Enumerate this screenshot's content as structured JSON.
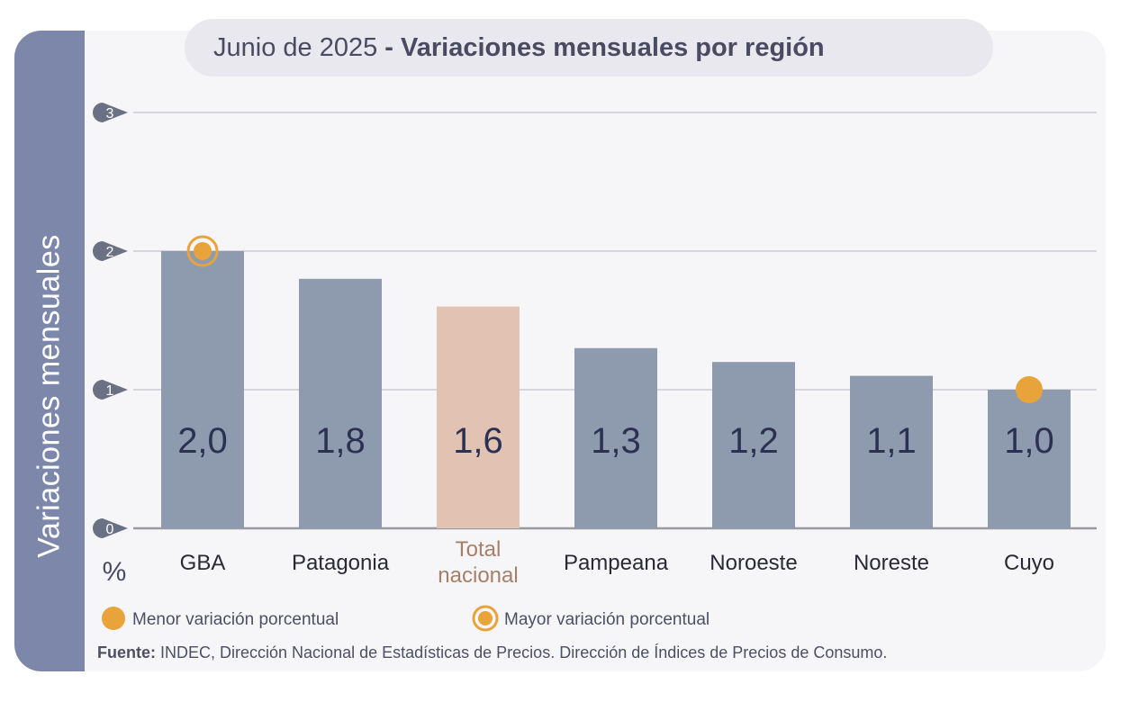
{
  "side_label": "Variaciones  mensuales",
  "title": {
    "date": "Junio de 2025",
    "separator": "-",
    "text": "Variaciones mensuales por región"
  },
  "unit_label": "%",
  "legend": {
    "min": {
      "label": "Menor variación porcentual",
      "color": "#e8a33a"
    },
    "max": {
      "label": "Mayor variación porcentual",
      "color": "#e8a33a"
    }
  },
  "footer": {
    "label": "Fuente:",
    "text": "INDEC, Dirección Nacional de Estadísticas de Precios. Dirección de Índices de Precios de Consumo."
  },
  "colors": {
    "bar": "#8e9baf",
    "highlight_bar": "#e2c3b3",
    "tick_badge": "#6b7185",
    "value_text": "#2c3152",
    "highlight_category_text": "#a77f68",
    "category_text": "#2a2a34"
  },
  "chart_data": {
    "type": "bar",
    "categories": [
      "GBA",
      "Patagonia",
      "Total nacional",
      "Pampeana",
      "Noroeste",
      "Noreste",
      "Cuyo"
    ],
    "value_labels": [
      "2,0",
      "1,8",
      "1,6",
      "1,3",
      "1,2",
      "1,1",
      "1,0"
    ],
    "values": [
      2.0,
      1.8,
      1.6,
      1.3,
      1.2,
      1.1,
      1.0
    ],
    "highlight_category": "Total nacional",
    "max_marker": "GBA",
    "min_marker": "Cuyo",
    "yticks": [
      "0",
      "1",
      "2",
      "3"
    ],
    "ylim": [
      0,
      3
    ],
    "grid": true
  }
}
